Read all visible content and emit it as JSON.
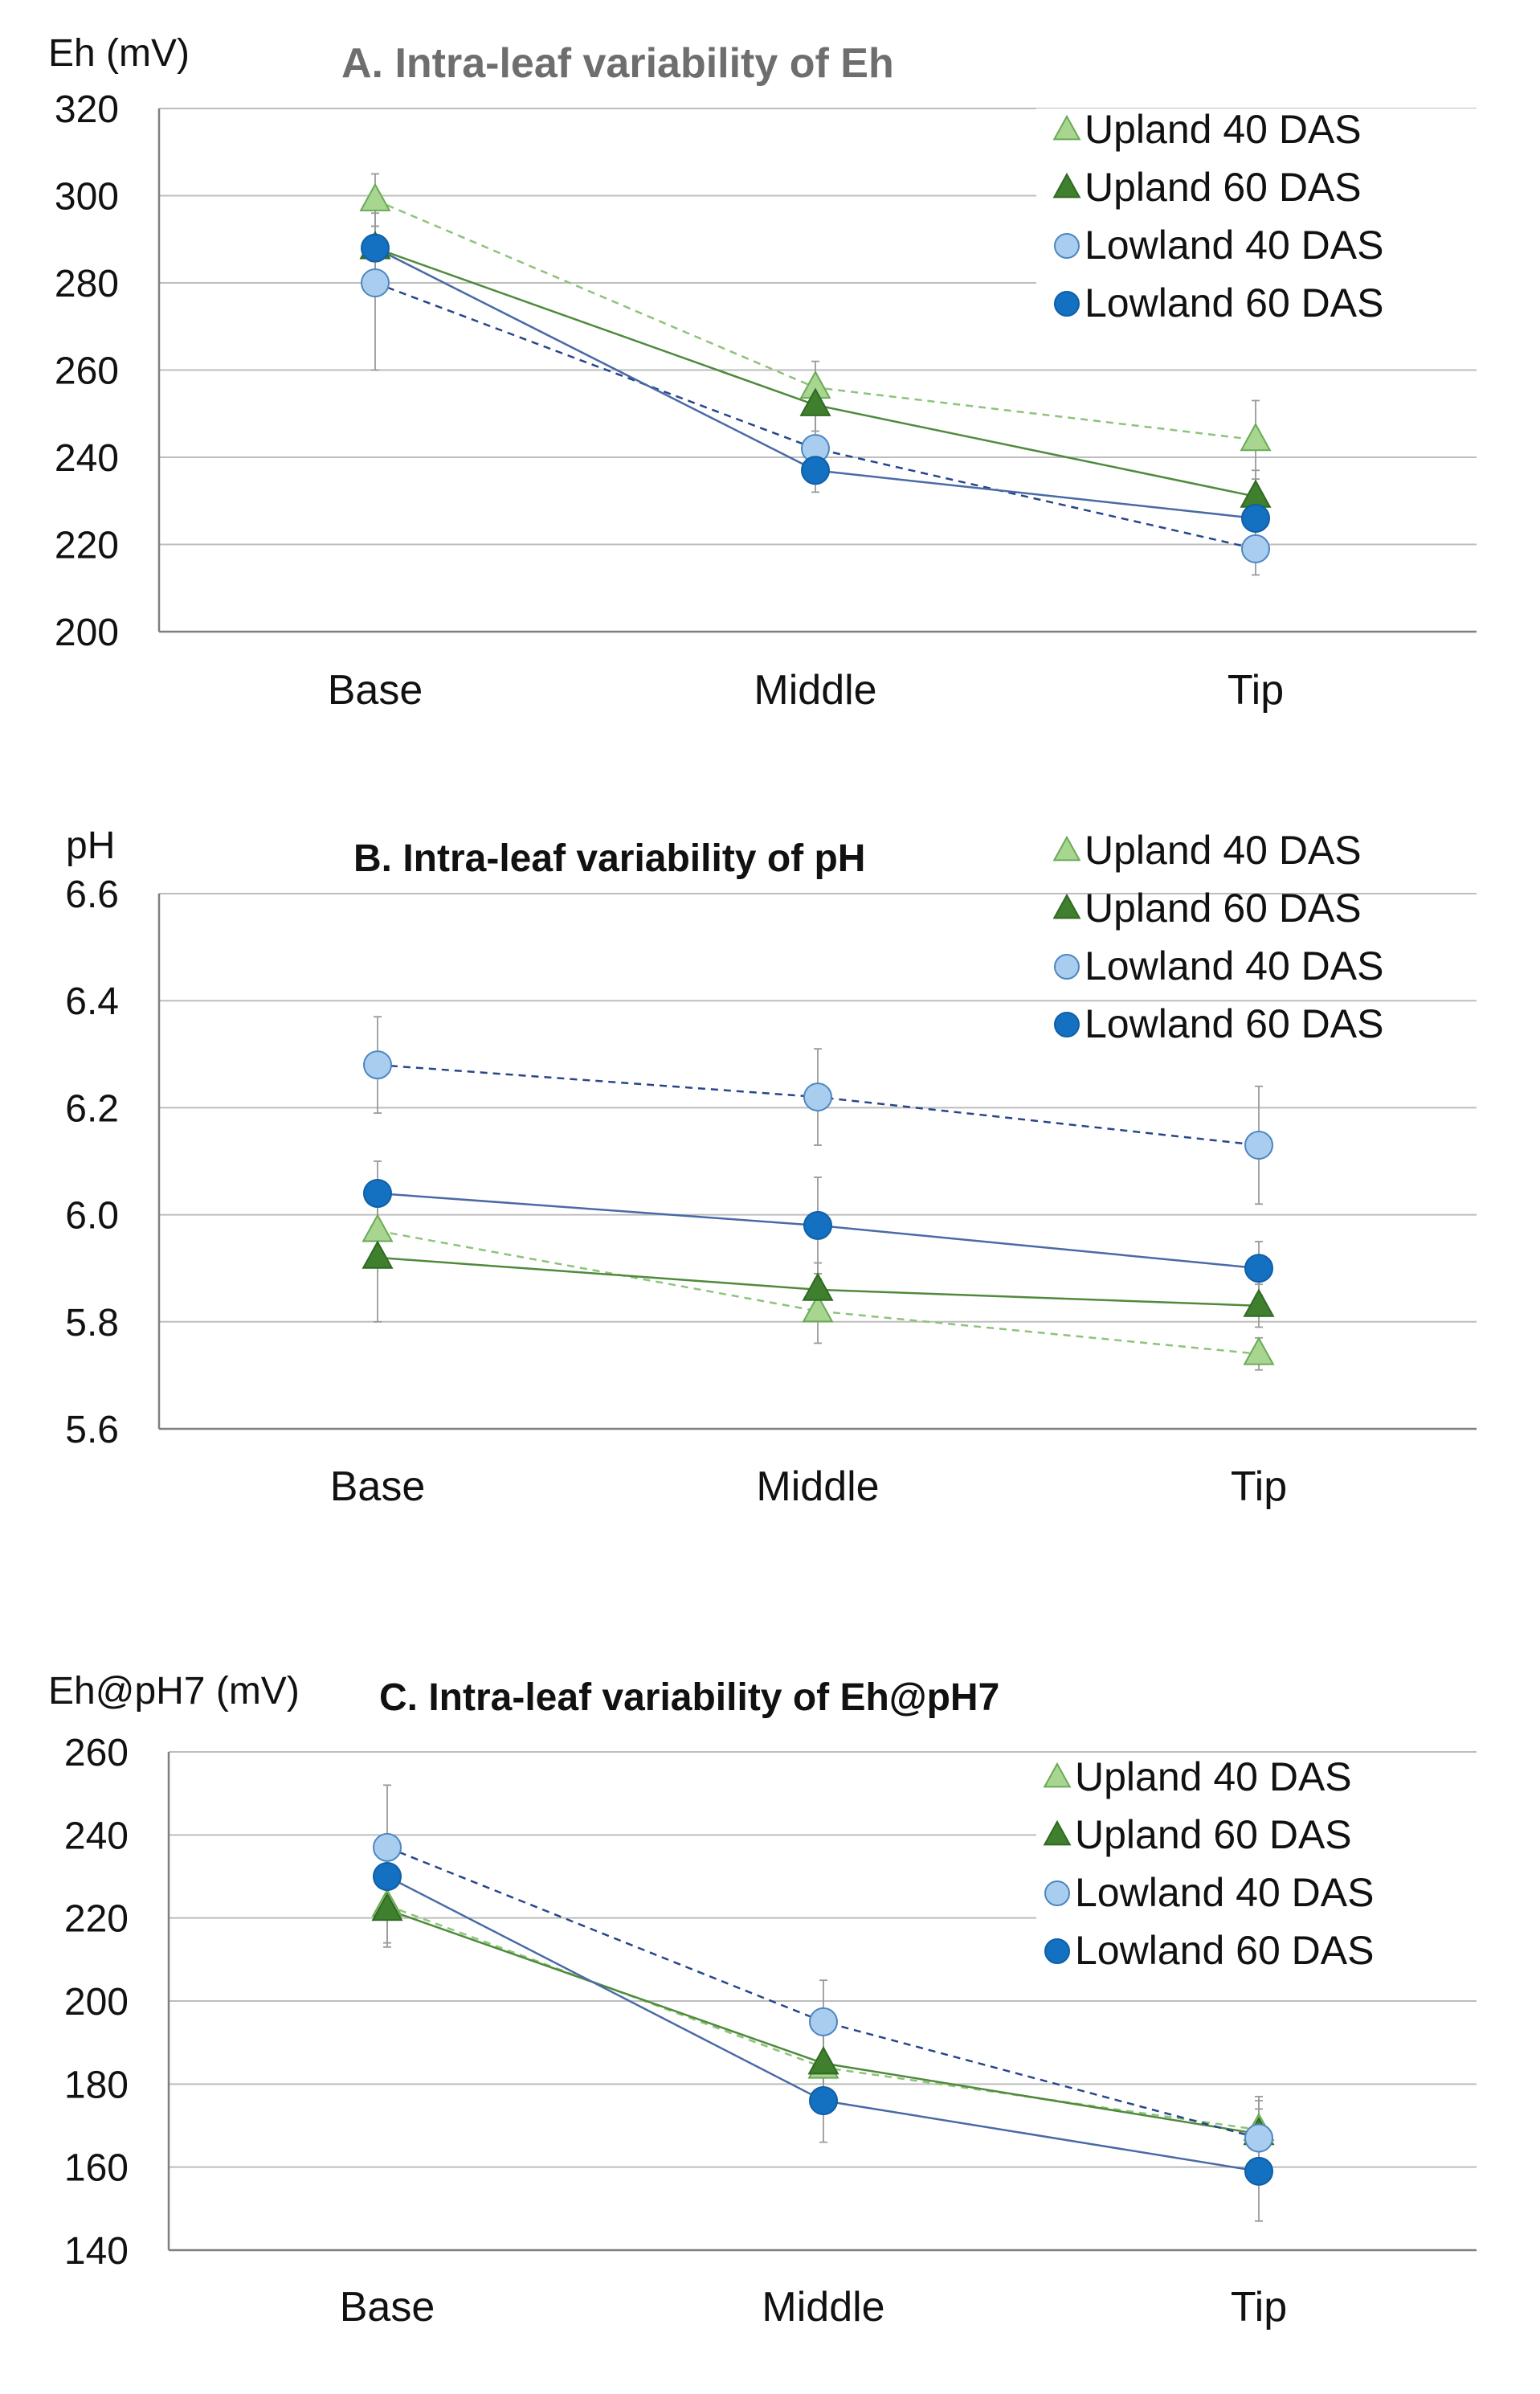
{
  "chart_data": [
    {
      "type": "line",
      "title": "A. Intra-leaf variability of Eh",
      "ylabel": "Eh (mV)",
      "xlabel": "",
      "categories": [
        "Base",
        "Middle",
        "Tip"
      ],
      "ylim": [
        200,
        320
      ],
      "yticks": [
        "200",
        "220",
        "240",
        "260",
        "280",
        "300",
        "320"
      ],
      "grid": true,
      "legend": "top-right",
      "series": [
        {
          "name": "Upland 40 DAS",
          "values": [
            299,
            256,
            244
          ],
          "errors": [
            6,
            6,
            9
          ]
        },
        {
          "name": "Upland 60 DAS",
          "values": [
            288,
            252,
            231
          ],
          "errors": [
            5,
            6,
            6
          ]
        },
        {
          "name": "Lowland 40 DAS",
          "values": [
            280,
            242,
            219
          ],
          "errors": [
            20,
            8,
            6
          ]
        },
        {
          "name": "Lowland 60 DAS",
          "values": [
            288,
            237,
            226
          ],
          "errors": [
            8,
            5,
            6
          ]
        }
      ]
    },
    {
      "type": "line",
      "title": "B. Intra-leaf variability of pH",
      "ylabel": "pH",
      "xlabel": "",
      "categories": [
        "Base",
        "Middle",
        "Tip"
      ],
      "ylim": [
        5.6,
        6.6
      ],
      "yticks": [
        "5.6",
        "5.8",
        "6.0",
        "6.2",
        "6.4",
        "6.6"
      ],
      "grid": true,
      "legend": "top-right",
      "series": [
        {
          "name": "Upland 40 DAS",
          "values": [
            5.97,
            5.82,
            5.74
          ],
          "errors": [
            0.05,
            0.06,
            0.03
          ]
        },
        {
          "name": "Upland 60 DAS",
          "values": [
            5.92,
            5.86,
            5.83
          ],
          "errors": [
            0.12,
            0.05,
            0.04
          ]
        },
        {
          "name": "Lowland 40 DAS",
          "values": [
            6.28,
            6.22,
            6.13
          ],
          "errors": [
            0.09,
            0.09,
            0.11
          ]
        },
        {
          "name": "Lowland 60 DAS",
          "values": [
            6.04,
            5.98,
            5.9
          ],
          "errors": [
            0.06,
            0.09,
            0.05
          ]
        }
      ]
    },
    {
      "type": "line",
      "title": "C. Intra-leaf variability of Eh@pH7",
      "ylabel": "Eh@pH7 (mV)",
      "xlabel": "",
      "categories": [
        "Base",
        "Middle",
        "Tip"
      ],
      "ylim": [
        140,
        260
      ],
      "yticks": [
        "140",
        "160",
        "180",
        "200",
        "220",
        "240",
        "260"
      ],
      "grid": true,
      "legend": "top-right",
      "series": [
        {
          "name": "Upland 40 DAS",
          "values": [
            223,
            184,
            169
          ],
          "errors": [
            10,
            8,
            7
          ]
        },
        {
          "name": "Upland 60 DAS",
          "values": [
            222,
            185,
            168
          ],
          "errors": [
            8,
            7,
            6
          ]
        },
        {
          "name": "Lowland 40 DAS",
          "values": [
            237,
            195,
            167
          ],
          "errors": [
            15,
            10,
            10
          ]
        },
        {
          "name": "Lowland 60 DAS",
          "values": [
            230,
            176,
            159
          ],
          "errors": [
            9,
            10,
            12
          ]
        }
      ]
    }
  ],
  "styles": {
    "Upland 40 DAS": {
      "line": "#8dc37a",
      "fill": "#a8d58f",
      "stroke": "#6aaa57",
      "marker": "triangle",
      "dash": true
    },
    "Upland 60 DAS": {
      "line": "#4f8a3c",
      "fill": "#3f7f2e",
      "stroke": "#2f6a22",
      "marker": "triangle",
      "dash": false
    },
    "Lowland 40 DAS": {
      "line": "#27468a",
      "fill": "#a9cdef",
      "stroke": "#4d86c0",
      "marker": "circle",
      "dash": true
    },
    "Lowland 60 DAS": {
      "line": "#4a6aa6",
      "fill": "#1470c0",
      "stroke": "#0f5fa6",
      "marker": "circle",
      "dash": false
    },
    "axis": "#7f7f7f",
    "grid": "#bdbdbd",
    "errorbar": "#9a9a9a",
    "text": "#111111",
    "title_a": "#6e6e6e"
  }
}
